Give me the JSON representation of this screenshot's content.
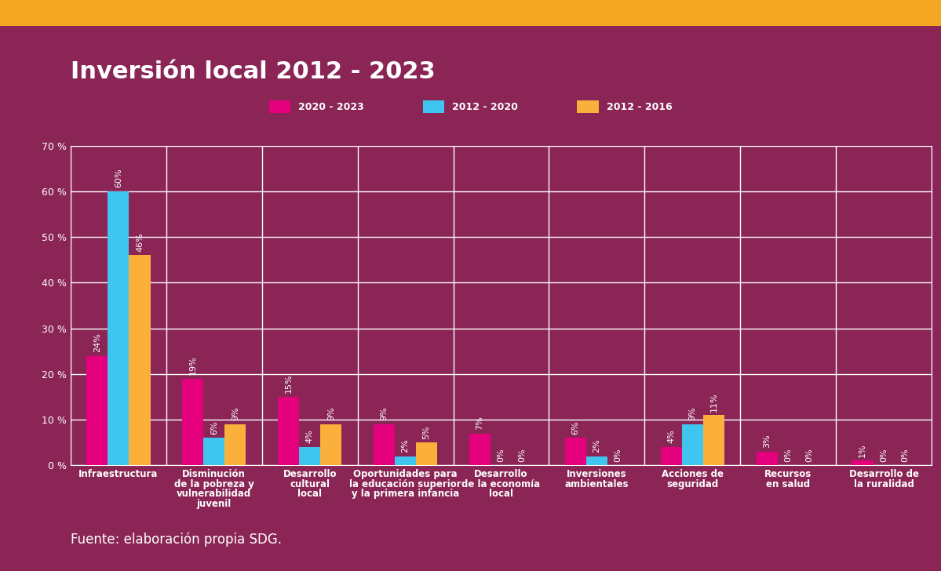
{
  "chart_data": {
    "type": "bar",
    "title": "Inversión local 2012 - 2023",
    "note": "Fuente: elaboración propia SDG.",
    "categories": [
      "Infraestructura",
      "Disminución\nde la pobreza y\nvulnerabilidad\njuvenil",
      "Desarrollo\ncultural\nlocal",
      "Oportunidades para\nla educación superior\ny la primera infancia",
      "Desarrollo\nde la economía\nlocal",
      "Inversiones\nambientales",
      "Acciones de\nseguridad",
      "Recursos\nen salud",
      "Desarrollo de\nla ruralidad"
    ],
    "series": [
      {
        "name": "2020 - 2023",
        "color": "#e5007e",
        "values": [
          24,
          19,
          15,
          9,
          7,
          6,
          4,
          3,
          1
        ],
        "value_labels": [
          "24%",
          "19%",
          "15%",
          "9%",
          "7%",
          "6%",
          "4%",
          "3%",
          "1%"
        ]
      },
      {
        "name": "2012 - 2020",
        "color": "#3ec6f0",
        "values": [
          60,
          6,
          4,
          2,
          0,
          2,
          9,
          0,
          0
        ],
        "value_labels": [
          "60%",
          "6%",
          "4%",
          "2%",
          "0%",
          "2%",
          "9%",
          "0%",
          "0%"
        ]
      },
      {
        "name": "2012 - 2016",
        "color": "#fbb03b",
        "values": [
          46,
          9,
          9,
          5,
          0,
          0,
          11,
          0,
          0
        ],
        "value_labels": [
          "46%",
          "9%",
          "9%",
          "5%",
          "0%",
          "0%",
          "11%",
          "0%",
          "0%"
        ]
      }
    ],
    "ylim": [
      0,
      70
    ],
    "yticks": [
      {
        "value": 0,
        "label": "0 %"
      },
      {
        "value": 10,
        "label": "10 %"
      },
      {
        "value": 20,
        "label": "20 %"
      },
      {
        "value": 30,
        "label": "30 %"
      },
      {
        "value": 40,
        "label": "40 %"
      },
      {
        "value": 50,
        "label": "50 %"
      },
      {
        "value": 60,
        "label": "60 %"
      },
      {
        "value": 70,
        "label": "70 %"
      }
    ],
    "grid": true,
    "legend": "upper center",
    "data_labels": true
  }
}
